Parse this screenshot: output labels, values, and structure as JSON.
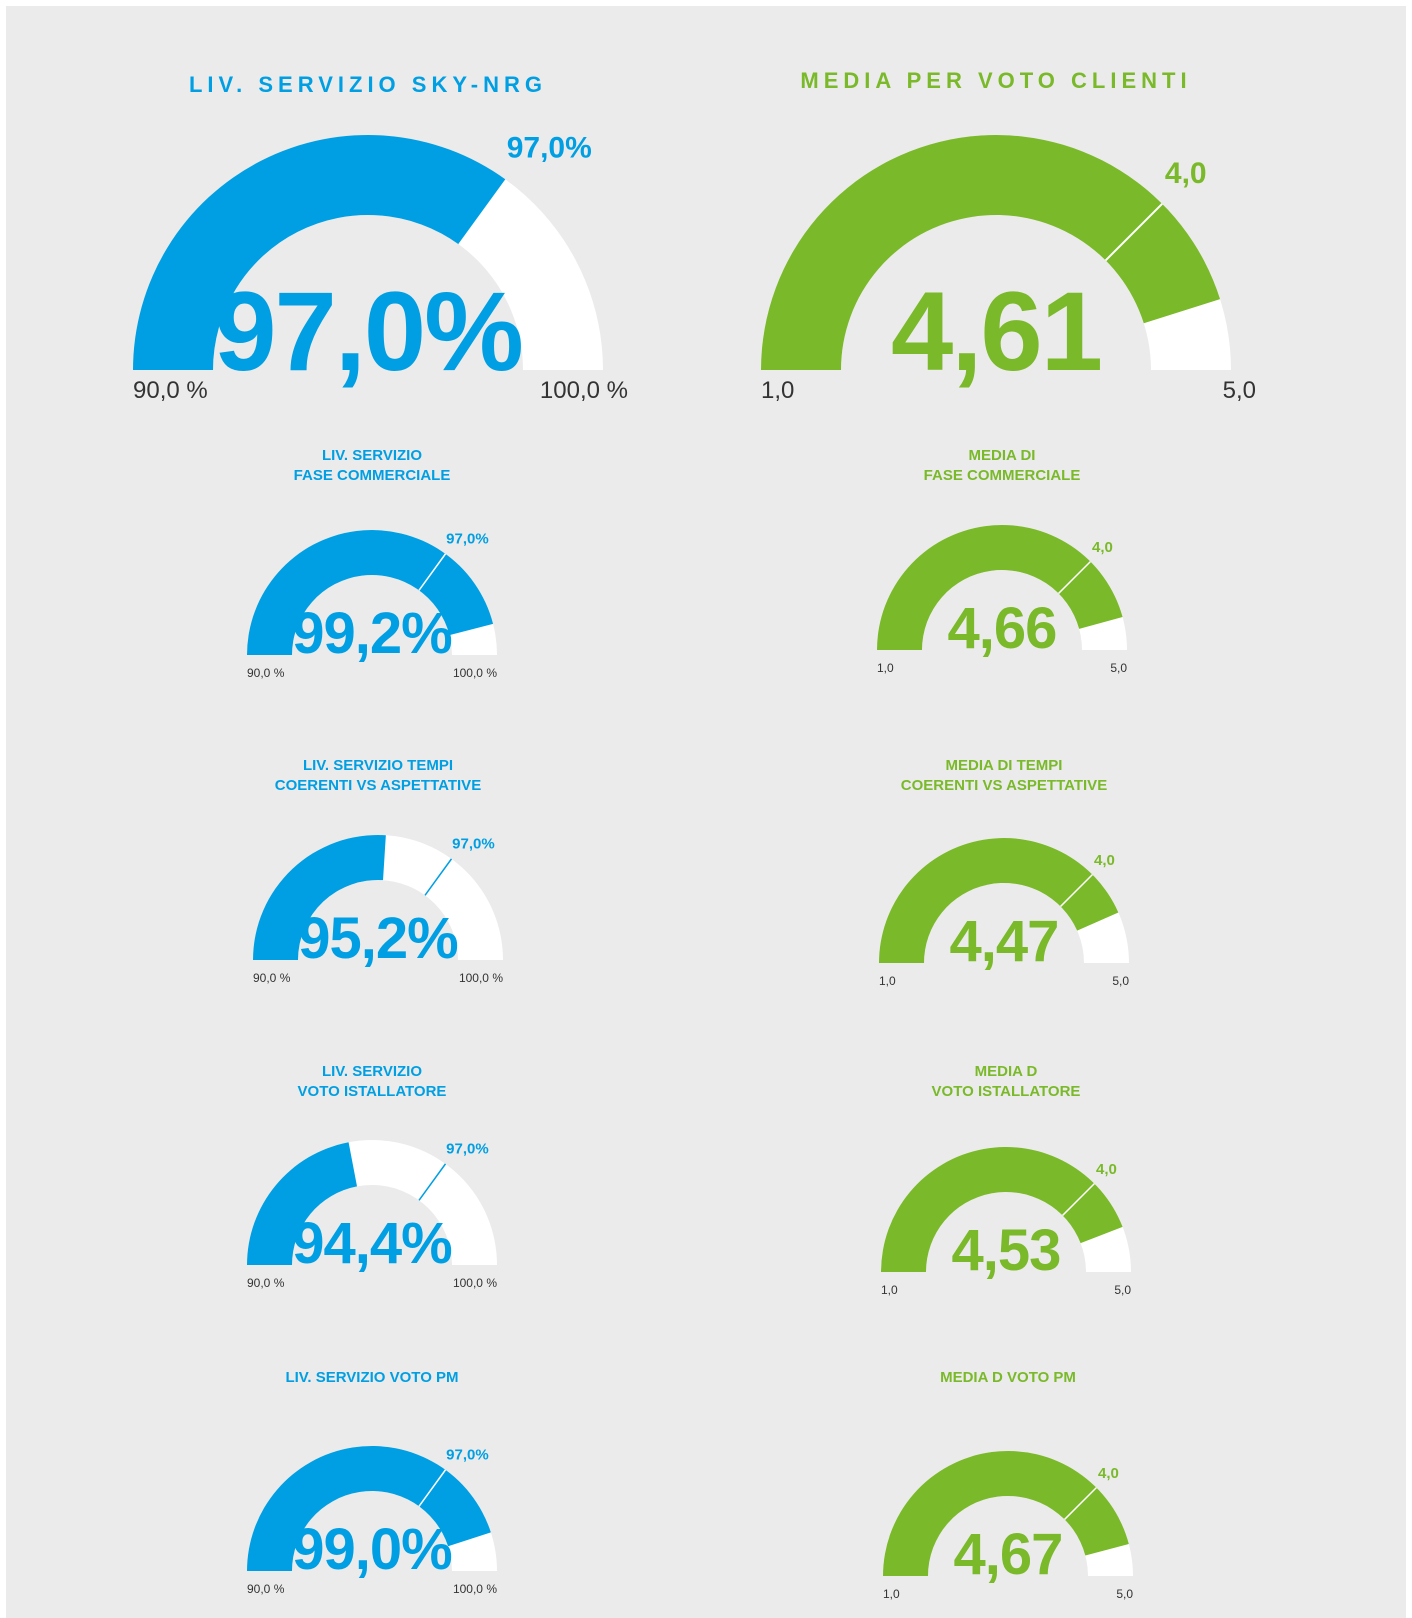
{
  "chart_data": [
    {
      "type": "gauge",
      "title": [
        "LIV. SERVIZIO SKY-NRG"
      ],
      "value": 97.0,
      "value_label": "97,0%",
      "lim": [
        90,
        100
      ],
      "ticks": [
        {
          "value": 90,
          "label": "90,0 %"
        },
        {
          "value": 100,
          "label": "100,0 %"
        }
      ],
      "target": {
        "value": 97.0,
        "label": "97,0%"
      },
      "color": "#009fe3"
    },
    {
      "type": "gauge",
      "title": [
        "MEDIA PER VOTO CLIENTI"
      ],
      "value": 4.61,
      "value_label": "4,61",
      "lim": [
        1,
        5
      ],
      "ticks": [
        {
          "value": 1,
          "label": "1,0"
        },
        {
          "value": 5,
          "label": "5,0"
        }
      ],
      "target": {
        "value": 4.0,
        "label": "4,0"
      },
      "color": "#7ab929"
    },
    {
      "type": "gauge",
      "title": [
        "LIV. SERVIZIO",
        "FASE COMMERCIALE"
      ],
      "value": 99.2,
      "value_label": "99,2%",
      "lim": [
        90,
        100
      ],
      "ticks": [
        {
          "value": 90,
          "label": "90,0 %"
        },
        {
          "value": 100,
          "label": "100,0 %"
        }
      ],
      "target": {
        "value": 97.0,
        "label": "97,0%"
      },
      "color": "#009fe3"
    },
    {
      "type": "gauge",
      "title": [
        "MEDIA DI",
        "FASE COMMERCIALE"
      ],
      "value": 4.66,
      "value_label": "4,66",
      "lim": [
        1,
        5
      ],
      "ticks": [
        {
          "value": 1,
          "label": "1,0"
        },
        {
          "value": 5,
          "label": "5,0"
        }
      ],
      "target": {
        "value": 4.0,
        "label": "4,0"
      },
      "color": "#7ab929"
    },
    {
      "type": "gauge",
      "title": [
        "LIV. SERVIZIO TEMPI",
        "COERENTI VS ASPETTATIVE"
      ],
      "value": 95.2,
      "value_label": "95,2%",
      "lim": [
        90,
        100
      ],
      "ticks": [
        {
          "value": 90,
          "label": "90,0 %"
        },
        {
          "value": 100,
          "label": "100,0 %"
        }
      ],
      "target": {
        "value": 97.0,
        "label": "97,0%"
      },
      "color": "#009fe3"
    },
    {
      "type": "gauge",
      "title": [
        "MEDIA DI TEMPI",
        "COERENTI VS ASPETTATIVE"
      ],
      "value": 4.47,
      "value_label": "4,47",
      "lim": [
        1,
        5
      ],
      "ticks": [
        {
          "value": 1,
          "label": "1,0"
        },
        {
          "value": 5,
          "label": "5,0"
        }
      ],
      "target": {
        "value": 4.0,
        "label": "4,0"
      },
      "color": "#7ab929"
    },
    {
      "type": "gauge",
      "title": [
        "LIV. SERVIZIO",
        "VOTO ISTALLATORE"
      ],
      "value": 94.4,
      "value_label": "94,4%",
      "lim": [
        90,
        100
      ],
      "ticks": [
        {
          "value": 90,
          "label": "90,0 %"
        },
        {
          "value": 100,
          "label": "100,0 %"
        }
      ],
      "target": {
        "value": 97.0,
        "label": "97,0%"
      },
      "color": "#009fe3"
    },
    {
      "type": "gauge",
      "title": [
        "MEDIA D",
        "VOTO ISTALLATORE"
      ],
      "value": 4.53,
      "value_label": "4,53",
      "lim": [
        1,
        5
      ],
      "ticks": [
        {
          "value": 1,
          "label": "1,0"
        },
        {
          "value": 5,
          "label": "5,0"
        }
      ],
      "target": {
        "value": 4.0,
        "label": "4,0"
      },
      "color": "#7ab929"
    },
    {
      "type": "gauge",
      "title": [
        "LIV. SERVIZIO VOTO PM"
      ],
      "value": 99.0,
      "value_label": "99,0%",
      "lim": [
        90,
        100
      ],
      "ticks": [
        {
          "value": 90,
          "label": "90,0 %"
        },
        {
          "value": 100,
          "label": "100,0 %"
        }
      ],
      "target": {
        "value": 97.0,
        "label": "97,0%"
      },
      "color": "#009fe3"
    },
    {
      "type": "gauge",
      "title": [
        "MEDIA D VOTO PM"
      ],
      "value": 4.67,
      "value_label": "4,67",
      "lim": [
        1,
        5
      ],
      "ticks": [
        {
          "value": 1,
          "label": "1,0"
        },
        {
          "value": 5,
          "label": "5,0"
        }
      ],
      "target": {
        "value": 4.0,
        "label": "4,0"
      },
      "color": "#7ab929"
    }
  ]
}
